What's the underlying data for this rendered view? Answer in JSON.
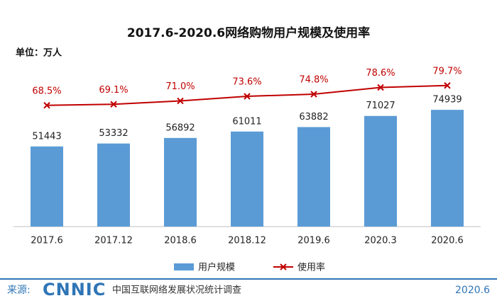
{
  "chart_data": {
    "type": "bar-line",
    "title": "2017.6-2020.6网络购物用户规模及使用率",
    "unit_label": "单位：万人",
    "categories": [
      "2017.6",
      "2017.12",
      "2018.6",
      "2018.12",
      "2019.6",
      "2020.3",
      "2020.6"
    ],
    "series": [
      {
        "name": "用户规模",
        "type": "bar",
        "color": "#5b9bd5",
        "values": [
          51443,
          53332,
          56892,
          61011,
          63882,
          71027,
          74939
        ]
      },
      {
        "name": "使用率",
        "type": "line",
        "axis": "y2",
        "color": "#c00000",
        "values": [
          68.5,
          69.1,
          71.0,
          73.6,
          74.8,
          78.6,
          79.7
        ],
        "value_labels": [
          "68.5%",
          "69.1%",
          "71.0%",
          "73.6%",
          "74.8%",
          "78.6%",
          "79.7%"
        ]
      }
    ],
    "ylim": [
      0,
      100000
    ],
    "y2lim": [
      0,
      88
    ],
    "legend": "bottom"
  },
  "footer": {
    "source_label": "来源:",
    "logo": "CNNIC",
    "source": "中国互联网络发展状况统计调查",
    "date": "2020.6"
  }
}
